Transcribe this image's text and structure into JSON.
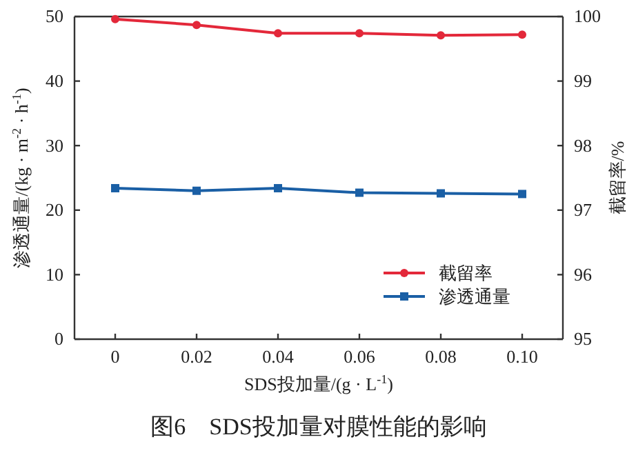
{
  "chart_data": {
    "type": "line",
    "title": "图6　SDS投加量对膜性能的影响",
    "xlabel": "SDS投加量/(g · L$^{-1}$)",
    "ylabel": "渗透通量/(kg · m$^{-2}$ · h$^{-1}$)",
    "y2label": "截留率/%",
    "x": [
      0,
      0.02,
      0.04,
      0.06,
      0.08,
      0.1
    ],
    "series": [
      {
        "name": "截留率",
        "color": "#e3283a",
        "axis": "y2",
        "marker": "circle",
        "values": [
          99.96,
          99.87,
          99.74,
          99.74,
          99.71,
          99.72
        ]
      },
      {
        "name": "渗透通量",
        "color": "#1a5fa5",
        "marker": "square",
        "values": [
          23.4,
          23.0,
          23.4,
          22.7,
          22.6,
          22.5
        ]
      }
    ],
    "xlim": [
      -0.01,
      0.11
    ],
    "xticks": [
      0,
      0.02,
      0.04,
      0.06,
      0.08,
      {
        "value": 0.1,
        "label": "0.10"
      }
    ],
    "ylim": [
      0,
      50
    ],
    "yticks": [
      0,
      10,
      20,
      30,
      40,
      50
    ],
    "y2lim": [
      95,
      100
    ],
    "y2ticks": [
      95,
      96,
      97,
      98,
      99,
      100
    ],
    "grid": false,
    "legend": "bottom right",
    "line_style": "solid"
  }
}
